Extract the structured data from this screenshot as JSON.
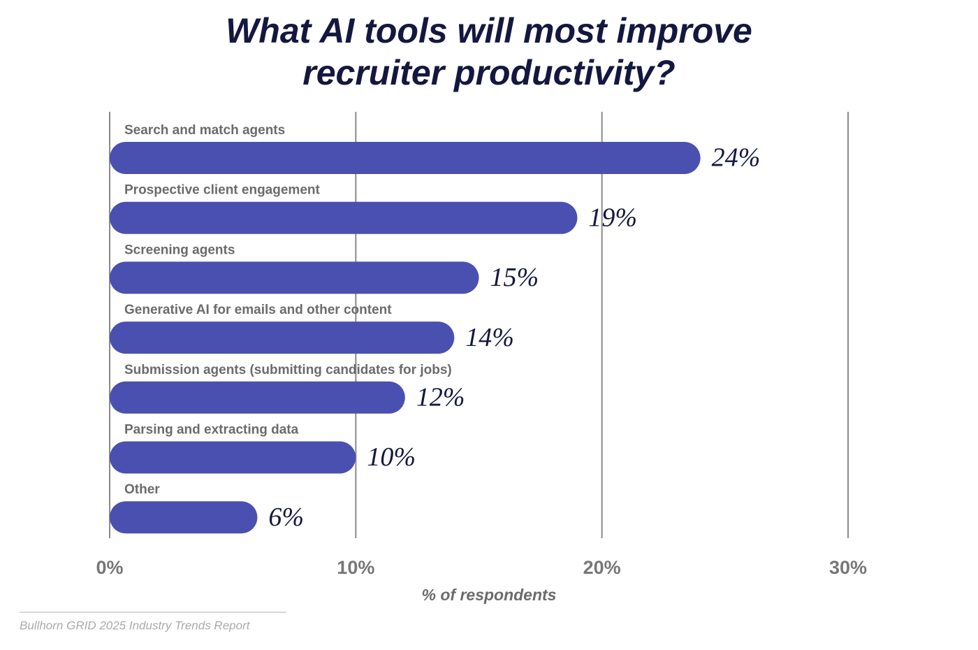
{
  "chart_data": {
    "type": "barh",
    "title": "What AI tools will most improve recruiter productivity?",
    "categories": [
      "Search and match agents",
      "Prospective client engagement",
      "Screening agents",
      "Generative AI for emails and other content",
      "Submission agents (submitting candidates for jobs)",
      "Parsing and extracting data",
      "Other"
    ],
    "values": [
      24,
      19,
      15,
      14,
      12,
      10,
      6
    ],
    "value_labels": [
      "24%",
      "19%",
      "15%",
      "14%",
      "12%",
      "10%",
      "6%"
    ],
    "color": "#4a50b0",
    "xlim": [
      0,
      30
    ],
    "xticks": [
      {
        "value": 0,
        "label": "0%"
      },
      {
        "value": 10,
        "label": "10%"
      },
      {
        "value": 20,
        "label": "20%"
      },
      {
        "value": 30,
        "label": "30%"
      }
    ],
    "xlabel": "% of respondents",
    "grid": true,
    "source": "Bullhorn GRID 2025 Industry Trends Report"
  }
}
